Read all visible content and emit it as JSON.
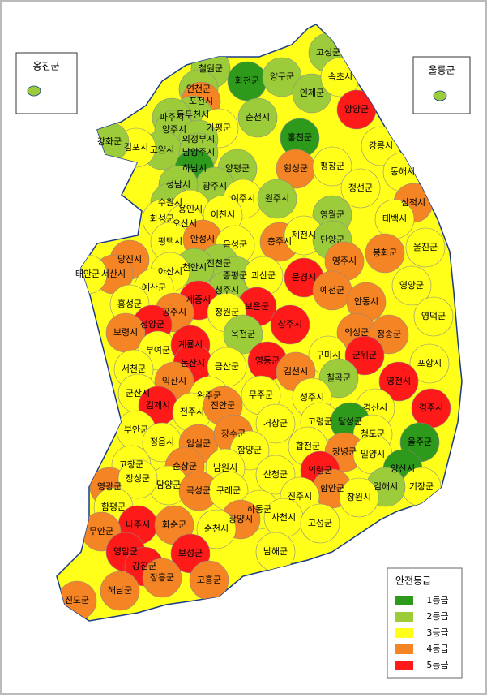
{
  "map": {
    "legend": {
      "title": "안전등급",
      "items": [
        {
          "label": "1등급",
          "grade": 1,
          "color": "#2e9a1b"
        },
        {
          "label": "2등급",
          "grade": 2,
          "color": "#9ccc3a"
        },
        {
          "label": "3등급",
          "grade": 3,
          "color": "#ffff1a"
        },
        {
          "label": "4등급",
          "grade": 4,
          "color": "#f58424"
        },
        {
          "label": "5등급",
          "grade": 5,
          "color": "#ff1a1a"
        }
      ]
    },
    "insets": [
      {
        "name": "옹진군",
        "grade": 2
      },
      {
        "name": "울릉군",
        "grade": 2
      }
    ],
    "regions": [
      {
        "name": "고성군",
        "grade": 2
      },
      {
        "name": "철원군",
        "grade": 2
      },
      {
        "name": "화천군",
        "grade": 1
      },
      {
        "name": "양구군",
        "grade": 2
      },
      {
        "name": "인제군",
        "grade": 2
      },
      {
        "name": "속초시",
        "grade": 3
      },
      {
        "name": "양양군",
        "grade": 5
      },
      {
        "name": "연천군",
        "grade": 2
      },
      {
        "name": "포천시",
        "grade": 4
      },
      {
        "name": "동두천시",
        "grade": 2
      },
      {
        "name": "파주시",
        "grade": 2
      },
      {
        "name": "양주시",
        "grade": 2
      },
      {
        "name": "가평군",
        "grade": 3
      },
      {
        "name": "춘천시",
        "grade": 2
      },
      {
        "name": "홍천군",
        "grade": 1
      },
      {
        "name": "강릉시",
        "grade": 3
      },
      {
        "name": "의정부시",
        "grade": 2
      },
      {
        "name": "고양시",
        "grade": 2
      },
      {
        "name": "남양주시",
        "grade": 2
      },
      {
        "name": "김포시",
        "grade": 3
      },
      {
        "name": "강화군",
        "grade": 2
      },
      {
        "name": "하남시",
        "grade": 1
      },
      {
        "name": "양평군",
        "grade": 2
      },
      {
        "name": "횡성군",
        "grade": 4
      },
      {
        "name": "평창군",
        "grade": 3
      },
      {
        "name": "동해시",
        "grade": 3
      },
      {
        "name": "광주시",
        "grade": 2
      },
      {
        "name": "성남시",
        "grade": 2
      },
      {
        "name": "여주시",
        "grade": 3
      },
      {
        "name": "원주시",
        "grade": 2
      },
      {
        "name": "정선군",
        "grade": 3
      },
      {
        "name": "삼척시",
        "grade": 4
      },
      {
        "name": "수원시",
        "grade": 2
      },
      {
        "name": "용인시",
        "grade": 3
      },
      {
        "name": "이천시",
        "grade": 3
      },
      {
        "name": "영월군",
        "grade": 2
      },
      {
        "name": "태백시",
        "grade": 3
      },
      {
        "name": "화성군",
        "grade": 3
      },
      {
        "name": "오산시",
        "grade": 3
      },
      {
        "name": "평택시",
        "grade": 3
      },
      {
        "name": "안성시",
        "grade": 4
      },
      {
        "name": "음성군",
        "grade": 3
      },
      {
        "name": "충주시",
        "grade": 4
      },
      {
        "name": "제천시",
        "grade": 3
      },
      {
        "name": "단양군",
        "grade": 2
      },
      {
        "name": "봉화군",
        "grade": 4
      },
      {
        "name": "울진군",
        "grade": 3
      },
      {
        "name": "당진시",
        "grade": 4
      },
      {
        "name": "진천군",
        "grade": 2
      },
      {
        "name": "영주시",
        "grade": 4
      },
      {
        "name": "천안시",
        "grade": 2
      },
      {
        "name": "증평군",
        "grade": 2
      },
      {
        "name": "괴산군",
        "grade": 3
      },
      {
        "name": "서산시",
        "grade": 4
      },
      {
        "name": "태안군",
        "grade": 3
      },
      {
        "name": "아산시",
        "grade": 3
      },
      {
        "name": "문경시",
        "grade": 5
      },
      {
        "name": "예천군",
        "grade": 4
      },
      {
        "name": "영양군",
        "grade": 3
      },
      {
        "name": "예산군",
        "grade": 3
      },
      {
        "name": "청주시",
        "grade": 2
      },
      {
        "name": "세종시",
        "grade": 5
      },
      {
        "name": "보은군",
        "grade": 5
      },
      {
        "name": "안동시",
        "grade": 4
      },
      {
        "name": "홍성군",
        "grade": 3
      },
      {
        "name": "공주시",
        "grade": 4
      },
      {
        "name": "청원군",
        "grade": 3
      },
      {
        "name": "상주시",
        "grade": 5
      },
      {
        "name": "영덕군",
        "grade": 3
      },
      {
        "name": "청양군",
        "grade": 5
      },
      {
        "name": "의성군",
        "grade": 4
      },
      {
        "name": "보령시",
        "grade": 4
      },
      {
        "name": "옥천군",
        "grade": 2
      },
      {
        "name": "청송군",
        "grade": 4
      },
      {
        "name": "부여군",
        "grade": 3
      },
      {
        "name": "계룡시",
        "grade": 5
      },
      {
        "name": "구미시",
        "grade": 3
      },
      {
        "name": "영동군",
        "grade": 5
      },
      {
        "name": "군위군",
        "grade": 5
      },
      {
        "name": "포항시",
        "grade": 3
      },
      {
        "name": "서천군",
        "grade": 3
      },
      {
        "name": "논산시",
        "grade": 5
      },
      {
        "name": "금산군",
        "grade": 3
      },
      {
        "name": "김천시",
        "grade": 4
      },
      {
        "name": "칠곡군",
        "grade": 2
      },
      {
        "name": "영천시",
        "grade": 5
      },
      {
        "name": "익산시",
        "grade": 4
      },
      {
        "name": "군산시",
        "grade": 3
      },
      {
        "name": "완주군",
        "grade": 3
      },
      {
        "name": "무주군",
        "grade": 3
      },
      {
        "name": "경주시",
        "grade": 5
      },
      {
        "name": "김제시",
        "grade": 5
      },
      {
        "name": "전주시",
        "grade": 3
      },
      {
        "name": "진안군",
        "grade": 4
      },
      {
        "name": "성주시",
        "grade": 3
      },
      {
        "name": "경산시",
        "grade": 3
      },
      {
        "name": "고령군",
        "grade": 3
      },
      {
        "name": "달성군",
        "grade": 1
      },
      {
        "name": "거창군",
        "grade": 3
      },
      {
        "name": "부안군",
        "grade": 3
      },
      {
        "name": "청도군",
        "grade": 3
      },
      {
        "name": "정읍시",
        "grade": 3
      },
      {
        "name": "임실군",
        "grade": 4
      },
      {
        "name": "장수군",
        "grade": 4
      },
      {
        "name": "합천군",
        "grade": 3
      },
      {
        "name": "울주군",
        "grade": 1
      },
      {
        "name": "함양군",
        "grade": 3
      },
      {
        "name": "창녕군",
        "grade": 4
      },
      {
        "name": "밀양시",
        "grade": 3
      },
      {
        "name": "고창군",
        "grade": 3
      },
      {
        "name": "순창군",
        "grade": 4
      },
      {
        "name": "남원시",
        "grade": 3
      },
      {
        "name": "영광군",
        "grade": 4
      },
      {
        "name": "담양군",
        "grade": 3
      },
      {
        "name": "산청군",
        "grade": 3
      },
      {
        "name": "의령군",
        "grade": 5
      },
      {
        "name": "양산시",
        "grade": 1
      },
      {
        "name": "기장군",
        "grade": 3
      },
      {
        "name": "함안군",
        "grade": 4
      },
      {
        "name": "김해시",
        "grade": 2
      },
      {
        "name": "장성군",
        "grade": 3
      },
      {
        "name": "곡성군",
        "grade": 4
      },
      {
        "name": "구례군",
        "grade": 3
      },
      {
        "name": "진주시",
        "grade": 3
      },
      {
        "name": "창원시",
        "grade": 3
      },
      {
        "name": "함평군",
        "grade": 3
      },
      {
        "name": "하동군",
        "grade": 3
      },
      {
        "name": "사천시",
        "grade": 3
      },
      {
        "name": "고성군",
        "grade": 3
      },
      {
        "name": "광양시",
        "grade": 4
      },
      {
        "name": "나주시",
        "grade": 5
      },
      {
        "name": "화순군",
        "grade": 4
      },
      {
        "name": "순천시",
        "grade": 3
      },
      {
        "name": "무안군",
        "grade": 4
      },
      {
        "name": "남해군",
        "grade": 3
      },
      {
        "name": "영암군",
        "grade": 5
      },
      {
        "name": "보성군",
        "grade": 5
      },
      {
        "name": "강진군",
        "grade": 5
      },
      {
        "name": "장흥군",
        "grade": 4
      },
      {
        "name": "고흥군",
        "grade": 4
      },
      {
        "name": "해남군",
        "grade": 4
      },
      {
        "name": "진도군",
        "grade": 4
      }
    ]
  }
}
